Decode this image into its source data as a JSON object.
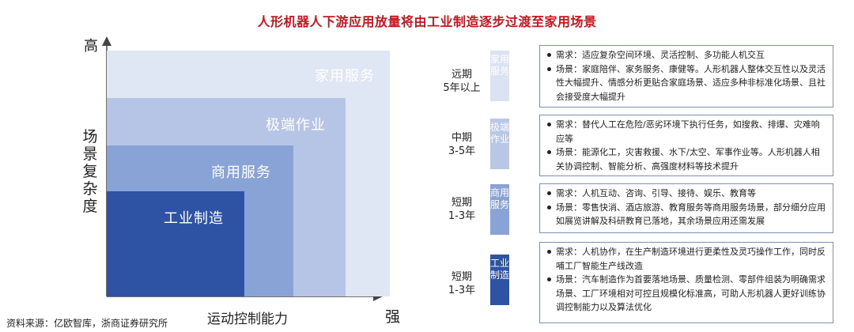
{
  "title": "人形机器人下游应用放量将由工业制造逐步过渡至家用场景",
  "axes": {
    "y_top": "高",
    "y_label": "场景复杂度",
    "x_label": "运动控制能力",
    "x_end": "强"
  },
  "blocks": [
    {
      "label": "家用服务",
      "color": "#dfe6f4"
    },
    {
      "label": "极端作业",
      "color": "#b6c5e6"
    },
    {
      "label": "商用服务",
      "color": "#8aa3d6"
    },
    {
      "label": "工业制造",
      "color": "#2e52a4"
    }
  ],
  "source": "资料来源：亿欧智库，浙商证券研究所",
  "stages": [
    {
      "period_line1": "远期",
      "period_line2": "5年以上",
      "tag": "家用服务",
      "tag_color": "#dbe2f2",
      "needs": "需求：适应复杂空间环境、灵活控制、多功能人机交互",
      "scenes": "场景：家庭陪伴、家务服务、康健等。人形机器人整体交互性以及灵活性大幅提升、情感分析更贴合家庭场景、适应多种非标准化场景、且社会接受度大幅提升"
    },
    {
      "period_line1": "中期",
      "period_line2": "3-5年",
      "tag": "极端作业",
      "tag_color": "#b9c7e6",
      "needs": "需求：替代人工在危险/恶劣环境下执行任务，如搜救、排爆、灾难响应等",
      "scenes": "场景：能源化工，灾害救援、水下/太空、军事作业等。人形机器人相关协调控制、智能分析、高强度材料等技术提升"
    },
    {
      "period_line1": "短期",
      "period_line2": "1-3年",
      "tag": "商用服务",
      "tag_color": "#8aa3d6",
      "needs": "需求：人机互动、咨询、引导、接待、娱乐、教育等",
      "scenes": "场景：零售快消、酒店旅游、教育服务等商用服务场景，部分细分应用如展览讲解及科研教育已落地，其余场景应用还需发展"
    },
    {
      "period_line1": "短期",
      "period_line2": "1-3年",
      "tag": "工业制造",
      "tag_color": "#2e52a4",
      "needs": "需求：人机协作，在生产制造环境进行更柔性及灵巧操作工作，同时反哺工厂智能生产线改造",
      "scenes": "场景：汽车制造作为首要落地场景、质量检测、零部件组装为明确需求场景、工厂环境相对可控且规模化标准高，可助人形机器人更好训练协调控制能力以及算法优化"
    }
  ]
}
